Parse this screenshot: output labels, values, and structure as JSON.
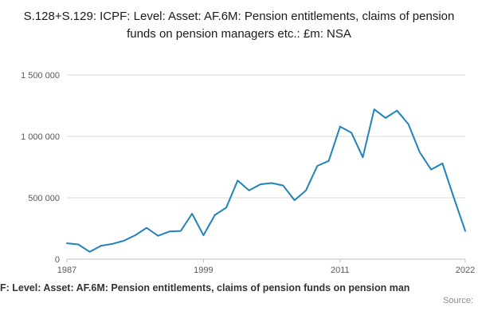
{
  "page": {
    "title": "S.128+S.129: ICPF: Level: Asset: AF.6M: Pension entitlements, claims of pension funds on pension managers etc.: £m: NSA",
    "footer_caption": "F: Level: Asset: AF.6M: Pension entitlements, claims of pension funds on pension man",
    "source_label": "Source:"
  },
  "colors": {
    "line": "#1f83bc",
    "grid": "#d9d9d9",
    "axis": "#bdbdbd",
    "tick_text": "#595959",
    "title_text": "#1a1a1a",
    "caption_text": "#333333",
    "source_text": "#8c8c8c",
    "background": "#ffffff"
  },
  "chart_data": {
    "type": "line",
    "title": "S.128+S.129: ICPF: Level: Asset: AF.6M: Pension entitlements, claims of pension funds on pension managers etc.: £m: NSA",
    "xlabel": "",
    "ylabel": "",
    "units": "£m",
    "x": [
      1987,
      1988,
      1989,
      1990,
      1991,
      1992,
      1993,
      1994,
      1995,
      1996,
      1997,
      1998,
      1999,
      2000,
      2001,
      2002,
      2003,
      2004,
      2005,
      2006,
      2007,
      2008,
      2009,
      2010,
      2011,
      2012,
      2013,
      2014,
      2015,
      2016,
      2017,
      2018,
      2019,
      2020,
      2021,
      2022
    ],
    "values": [
      130000,
      120000,
      60000,
      110000,
      125000,
      150000,
      195000,
      255000,
      190000,
      225000,
      230000,
      370000,
      195000,
      360000,
      420000,
      640000,
      560000,
      610000,
      620000,
      600000,
      480000,
      560000,
      760000,
      800000,
      1080000,
      1030000,
      830000,
      1220000,
      1150000,
      1210000,
      1100000,
      870000,
      730000,
      780000,
      500000,
      230000
    ],
    "ylim": [
      0,
      1500000
    ],
    "yticks": [
      0,
      500000,
      1000000,
      1500000
    ],
    "ytick_labels": [
      "0",
      "500 000",
      "1 000 000",
      "1 500 000"
    ],
    "xticks": [
      1987,
      1999,
      2011,
      2022
    ],
    "grid": true,
    "legend": false
  }
}
